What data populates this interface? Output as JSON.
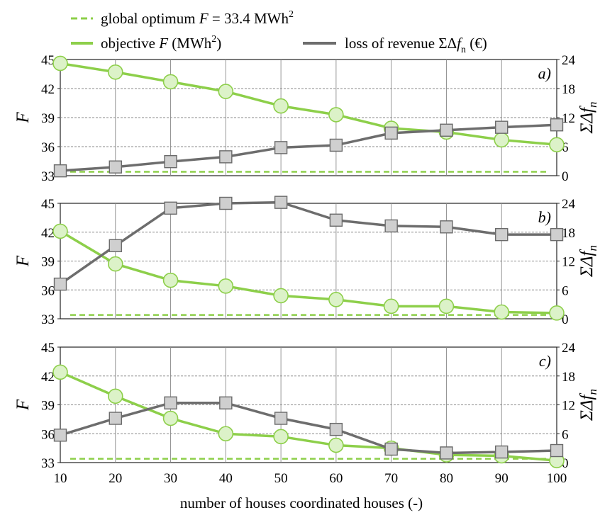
{
  "chart_data": {
    "type": "line",
    "xlabel": "number of houses coordinated houses (-)",
    "x": [
      10,
      20,
      30,
      40,
      50,
      60,
      70,
      80,
      90,
      100
    ],
    "x_ticks": [
      "10",
      "20",
      "30",
      "40",
      "50",
      "60",
      "70",
      "80",
      "90",
      "100"
    ],
    "left_axis": {
      "label": "F",
      "ticks": [
        "33",
        "36",
        "39",
        "42",
        "45"
      ],
      "ylim": [
        33,
        45
      ]
    },
    "right_axis": {
      "label": "ΣΔf",
      "subscript": "n",
      "ticks": [
        "0",
        "6",
        "12",
        "18",
        "24"
      ],
      "ylim": [
        0,
        24
      ]
    },
    "grid": true,
    "colors": {
      "objective": "#8dcf4a",
      "objective_fill": "#dcf2c8",
      "loss": "#6d6d6d",
      "loss_fill": "#cfcfcf",
      "optimum": "#8dcf4a"
    },
    "legend": {
      "optimum": {
        "pre": "global optimum ",
        "var": "F",
        "post": " = 33.4 MWh",
        "sup": "2"
      },
      "objective": {
        "pre": "objective ",
        "var": "F",
        "post": " (MWh",
        "sup": "2",
        "end": ")"
      },
      "loss": {
        "pre": "loss of revenue ΣΔ",
        "var": "f",
        "sub": "n",
        "post": " (€)"
      }
    },
    "global_optimum": 33.4,
    "panels": [
      {
        "tag": "a)",
        "series": [
          {
            "name": "objective F (MWh²)",
            "axis": "left",
            "values": [
              44.6,
              43.7,
              42.7,
              41.7,
              40.2,
              39.3,
              37.9,
              37.5,
              36.7,
              36.2
            ]
          },
          {
            "name": "loss of revenue ΣΔfn (€)",
            "axis": "right",
            "values": [
              1.0,
              1.8,
              2.9,
              3.9,
              5.8,
              6.3,
              8.8,
              9.4,
              10.0,
              10.5
            ]
          }
        ]
      },
      {
        "tag": "b)",
        "series": [
          {
            "name": "objective F (MWh²)",
            "axis": "left",
            "values": [
              42.1,
              38.7,
              37.0,
              36.4,
              35.4,
              35.0,
              34.3,
              34.3,
              33.7,
              33.6
            ]
          },
          {
            "name": "loss of revenue ΣΔfn (€)",
            "axis": "right",
            "values": [
              7.2,
              15.2,
              23.0,
              24.0,
              24.2,
              20.5,
              19.3,
              19.1,
              17.5,
              17.5
            ]
          }
        ]
      },
      {
        "tag": "c)",
        "series": [
          {
            "name": "objective F (MWh²)",
            "axis": "left",
            "values": [
              42.4,
              39.9,
              37.6,
              36.0,
              35.7,
              34.8,
              34.5,
              33.8,
              33.7,
              33.2
            ]
          },
          {
            "name": "loss of revenue ΣΔfn (€)",
            "axis": "right",
            "values": [
              5.7,
              9.2,
              12.4,
              12.4,
              9.2,
              6.9,
              2.8,
              2.0,
              2.2,
              2.5
            ]
          }
        ]
      }
    ]
  }
}
